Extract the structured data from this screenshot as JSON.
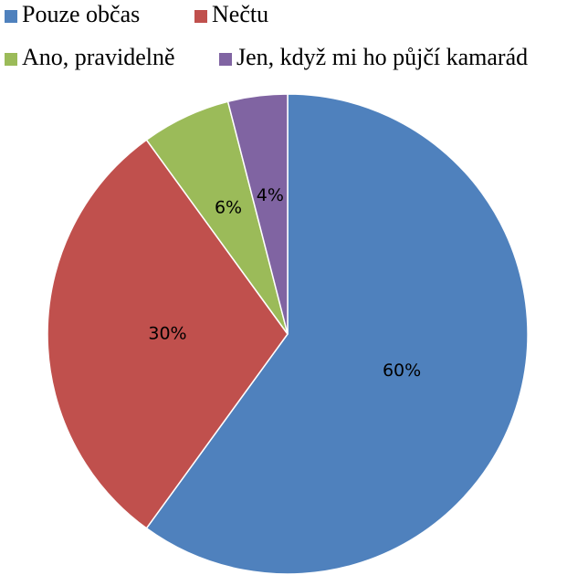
{
  "chart_data": {
    "type": "pie",
    "categories": [
      "Pouze občas",
      "Nečtu",
      "Ano, pravidelně",
      "Jen, když mi ho půjčí kamarád"
    ],
    "values": [
      60,
      30,
      6,
      4
    ],
    "value_labels": [
      "60%",
      "30%",
      "6%",
      "4%"
    ],
    "colors": [
      "#4f81bd",
      "#c0504d",
      "#9bbb59",
      "#8064a2"
    ]
  }
}
